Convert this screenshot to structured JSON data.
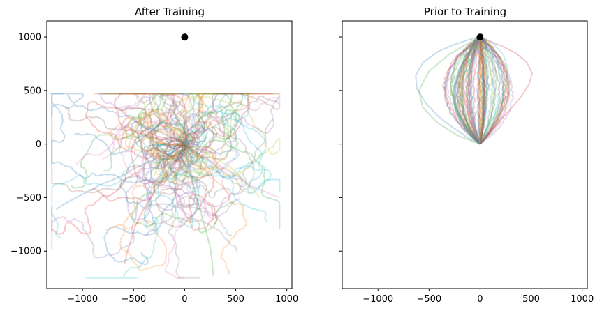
{
  "chart_data": [
    {
      "type": "line",
      "title": "After Training",
      "xlim": [
        -1350,
        1050
      ],
      "ylim": [
        -1350,
        1150
      ],
      "xticks": [
        -1000,
        -500,
        0,
        500,
        1000
      ],
      "yticks": [
        -1000,
        -500,
        0,
        500,
        1000
      ],
      "ytick_labels_shown": true,
      "target": {
        "x": 0,
        "y": 1000,
        "color": "#000000"
      },
      "series_alpha": 0.25,
      "trajectory_count": 80,
      "trajectory_style": "random walks clustered around the origin, extending outward to roughly x -1300..930 and y -1250..470",
      "series": [
        {
          "name": "",
          "x": [
            0,
            -60,
            -140,
            -260,
            -380,
            -500,
            -600,
            -720,
            -830,
            -900,
            -980,
            -1080,
            -1180,
            -1260
          ],
          "y": [
            0,
            -40,
            -90,
            -130,
            -180,
            -230,
            -290,
            -340,
            -380,
            -420,
            -460,
            -510,
            -560,
            -610
          ]
        },
        {
          "name": "",
          "x": [
            0,
            -40,
            -90,
            -150,
            -230,
            -300,
            -360,
            -420,
            -480,
            -520,
            -560,
            -590
          ],
          "y": [
            0,
            -80,
            -170,
            -260,
            -360,
            -450,
            -540,
            -640,
            -760,
            -880,
            -1000,
            -1120
          ]
        },
        {
          "name": "",
          "x": [
            0,
            60,
            120,
            200,
            280,
            360,
            440,
            520,
            600,
            680,
            760,
            840,
            930
          ],
          "y": [
            0,
            -40,
            -90,
            -130,
            -170,
            -220,
            -260,
            -300,
            -360,
            -400,
            -430,
            -470,
            -500
          ]
        },
        {
          "name": "",
          "x": [
            0,
            40,
            100,
            150,
            210,
            260,
            300,
            320
          ],
          "y": [
            0,
            80,
            150,
            230,
            300,
            360,
            420,
            470
          ]
        },
        {
          "name": "",
          "x": [
            0,
            20,
            50,
            90,
            130,
            170,
            210,
            250,
            270,
            280
          ],
          "y": [
            0,
            -120,
            -260,
            -400,
            -540,
            -680,
            -820,
            -960,
            -1100,
            -1230
          ]
        },
        {
          "name": "",
          "x": [
            0,
            -80,
            -160,
            -240,
            -330,
            -420,
            -500,
            -560,
            -600,
            -620
          ],
          "y": [
            0,
            40,
            80,
            110,
            140,
            180,
            220,
            260,
            290,
            320
          ]
        },
        {
          "name": "",
          "x": [
            0,
            80,
            170,
            260,
            350,
            440,
            520,
            600,
            680,
            740
          ],
          "y": [
            0,
            -30,
            -70,
            -110,
            -160,
            -210,
            -280,
            -360,
            -440,
            -500
          ]
        }
      ]
    },
    {
      "type": "line",
      "title": "Prior to Training",
      "xlim": [
        -1350,
        1050
      ],
      "ylim": [
        -1350,
        1150
      ],
      "xticks": [
        -1000,
        -500,
        0,
        500,
        1000
      ],
      "yticks": [
        -1000,
        -500,
        0,
        500,
        1000
      ],
      "ytick_labels_shown": false,
      "target": {
        "x": 0,
        "y": 1000,
        "color": "#000000"
      },
      "series_alpha": 0.25,
      "trajectory_count": 80,
      "trajectory_style": "fan of paths starting at the origin and curving upward toward the target, spanning roughly x -650..520 and y 0..1000",
      "series": [
        {
          "name": "",
          "x": [
            0,
            -120,
            -260,
            -400,
            -530,
            -620,
            -630,
            -560,
            -420,
            -250,
            -90,
            0
          ],
          "y": [
            0,
            60,
            150,
            250,
            380,
            520,
            640,
            760,
            860,
            930,
            980,
            1000
          ]
        },
        {
          "name": "",
          "x": [
            0,
            80,
            180,
            290,
            400,
            480,
            510,
            460,
            350,
            200,
            70,
            0
          ],
          "y": [
            0,
            90,
            200,
            320,
            440,
            560,
            660,
            760,
            850,
            920,
            970,
            1000
          ]
        },
        {
          "name": "",
          "x": [
            0,
            -40,
            -90,
            -140,
            -170,
            -160,
            -110,
            -50,
            0
          ],
          "y": [
            0,
            120,
            260,
            400,
            540,
            680,
            820,
            930,
            1000
          ]
        },
        {
          "name": "",
          "x": [
            0,
            60,
            140,
            210,
            260,
            270,
            230,
            140,
            40
          ],
          "y": [
            0,
            130,
            270,
            420,
            560,
            700,
            830,
            930,
            990
          ]
        },
        {
          "name": "",
          "x": [
            0,
            -220,
            -420,
            -560,
            -600,
            -500,
            -300,
            -100,
            0
          ],
          "y": [
            0,
            80,
            200,
            340,
            500,
            680,
            840,
            950,
            1000
          ]
        }
      ]
    }
  ]
}
